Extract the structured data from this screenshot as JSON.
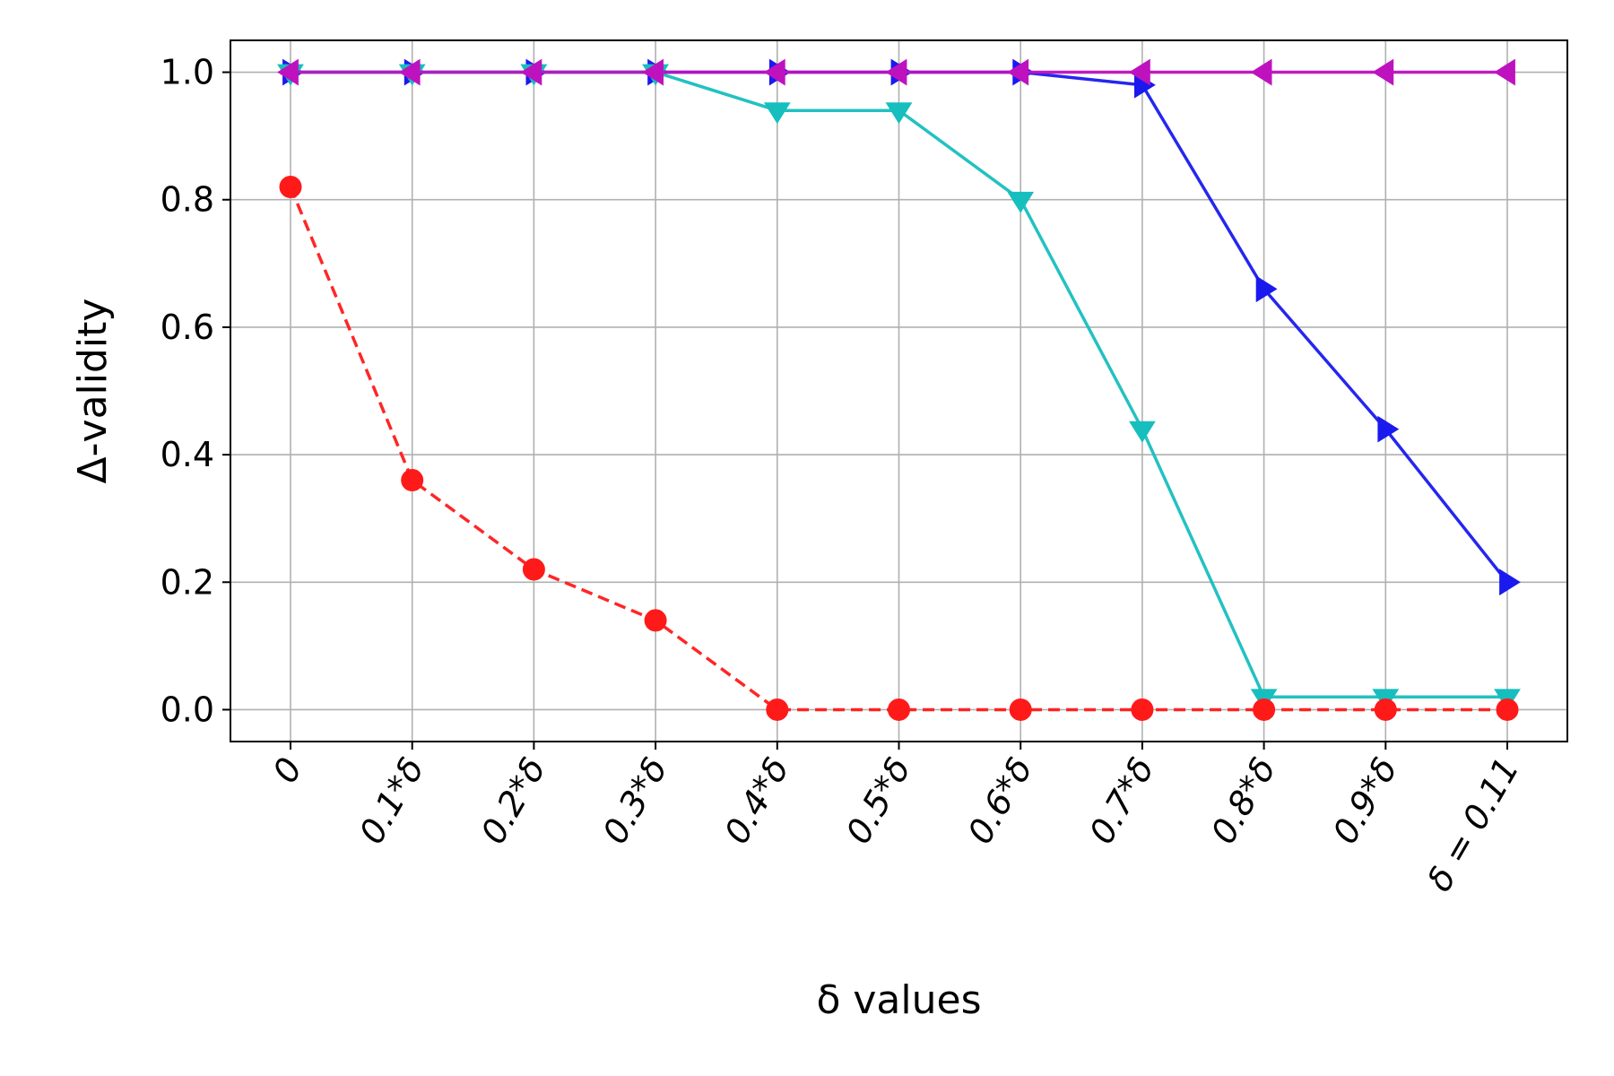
{
  "chart_data": {
    "type": "line",
    "xlabel": "δ values",
    "ylabel": "Δ-validity",
    "categories": [
      "0",
      "0.1*δ",
      "0.2*δ",
      "0.3*δ",
      "0.4*δ",
      "0.5*δ",
      "0.6*δ",
      "0.7*δ",
      "0.8*δ",
      "0.9*δ",
      "δ = 0.11"
    ],
    "ylim": [
      -0.05,
      1.05
    ],
    "yticks": [
      0.0,
      0.2,
      0.4,
      0.6,
      0.8,
      1.0
    ],
    "ytick_labels": [
      "0.0",
      "0.2",
      "0.4",
      "0.6",
      "0.8",
      "1.0"
    ],
    "grid": true,
    "series": [
      {
        "color": "#1a1aee",
        "marker": "triangle-right",
        "dash": "solid",
        "values": [
          1.0,
          1.0,
          1.0,
          1.0,
          1.0,
          1.0,
          1.0,
          0.98,
          0.66,
          0.44,
          0.2
        ]
      },
      {
        "color": "#17bebe",
        "marker": "triangle-down",
        "dash": "solid",
        "values": [
          1.0,
          1.0,
          1.0,
          1.0,
          0.94,
          0.94,
          0.8,
          0.44,
          0.02,
          0.02,
          0.02
        ]
      },
      {
        "color": "#ff1a1a",
        "marker": "circle",
        "dash": "dashed",
        "values": [
          0.82,
          0.36,
          0.22,
          0.14,
          0.0,
          0.0,
          0.0,
          0.0,
          0.0,
          0.0,
          0.0
        ]
      },
      {
        "color": "#bf12bf",
        "marker": "triangle-left",
        "dash": "solid",
        "values": [
          1.0,
          1.0,
          1.0,
          1.0,
          1.0,
          1.0,
          1.0,
          1.0,
          1.0,
          1.0,
          1.0
        ]
      }
    ]
  }
}
